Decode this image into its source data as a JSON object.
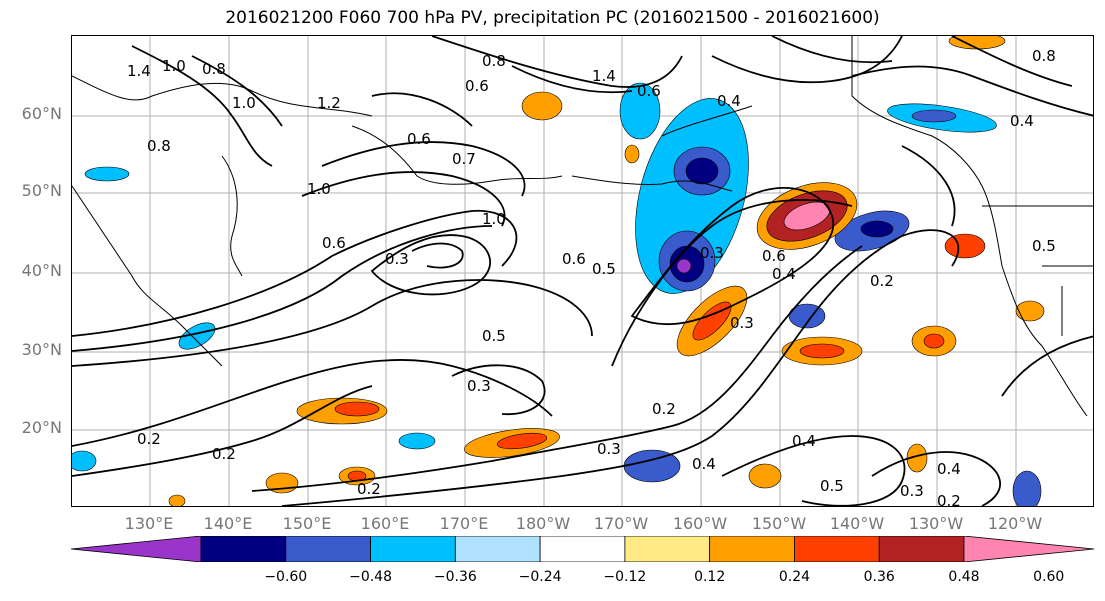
{
  "title": "2016021200 F060 700 hPa PV, precipitation PC (2016021500 - 2016021600)",
  "map": {
    "lat_labels": [
      "60°N",
      "50°N",
      "40°N",
      "30°N",
      "20°N"
    ],
    "lon_labels": [
      "130°E",
      "140°E",
      "150°E",
      "160°E",
      "170°E",
      "180°W",
      "170°W",
      "160°W",
      "150°W",
      "140°W",
      "130°W",
      "120°W"
    ],
    "contour_labels": [
      "1.4",
      "1.0",
      "0.8",
      "1.0",
      "1.2",
      "0.8",
      "0.6",
      "0.7",
      "1.0",
      "0.6",
      "0.3",
      "1.0",
      "0.6",
      "0.5",
      "0.3",
      "0.6",
      "0.4",
      "0.2",
      "0.3",
      "0.5",
      "0.3",
      "0.2",
      "0.2",
      "0.2",
      "0.3",
      "0.2",
      "0.4",
      "0.4",
      "0.5",
      "0.3",
      "0.4",
      "0.2",
      "0.5",
      "0.4",
      "0.6",
      "0.8",
      "1.4",
      "0.8",
      "0.6",
      "0.4"
    ]
  },
  "colorbar": {
    "ticks": [
      "−0.60",
      "−0.48",
      "−0.36",
      "−0.24",
      "−0.12",
      "0.12",
      "0.24",
      "0.36",
      "0.48",
      "0.60"
    ],
    "colors": [
      "#9a35c9",
      "#000080",
      "#3a5bcb",
      "#00bfff",
      "#b0e2ff",
      "#ffffff",
      "#ffea86",
      "#ffa000",
      "#ff4000",
      "#b22222",
      "#ff85b0"
    ]
  }
}
